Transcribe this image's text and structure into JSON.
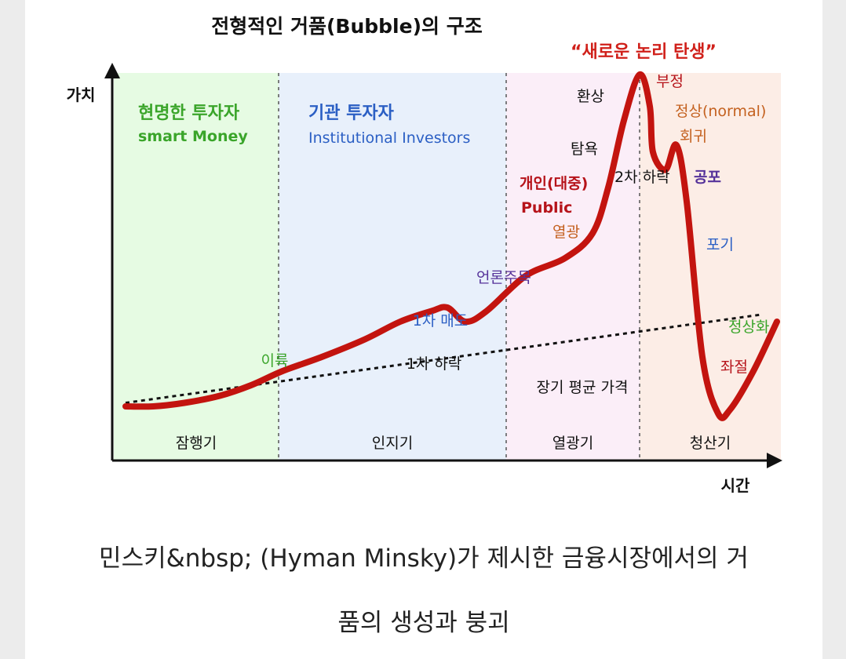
{
  "chart_data": {
    "type": "line",
    "title": "전형적인 거품(Bubble)의 구조",
    "xlabel": "시간",
    "ylabel": "가치",
    "phases": [
      {
        "name": "잠행기",
        "color": "#e6fbe3"
      },
      {
        "name": "인지기",
        "color": "#e8f0fb"
      },
      {
        "name": "열광기",
        "color": "#fbeef8"
      },
      {
        "name": "청산기",
        "color": "#fcede6"
      }
    ],
    "series": [
      {
        "name": "",
        "values": [
          0.06,
          0.06,
          0.07,
          0.09,
          0.12,
          0.16,
          0.2,
          0.25,
          0.3,
          0.33,
          0.34,
          0.3,
          0.33,
          0.43,
          0.48,
          0.55,
          0.68,
          0.87,
          1.0,
          0.91,
          0.78,
          0.73,
          0.8,
          0.64,
          0.2,
          0.04,
          0.05,
          0.16,
          0.3
        ]
      },
      {
        "name": "장기 평균 가격",
        "values": [
          0.07,
          0.32
        ]
      }
    ],
    "annotations": {
      "smart_money_kr": "현명한 투자자",
      "smart_money_en": "smart Money",
      "institutional_kr": "기관 투자자",
      "institutional_en": "Institutional Investors",
      "profit": "이륙",
      "first_sell": "1차 매도",
      "first_drop": "1차 하락",
      "media": "언론주목",
      "public_kr": "개인(대중)",
      "public_en": "Public",
      "mania": "열광",
      "greed": "탐욕",
      "delusion": "환상",
      "new_paradigm": "“새로운 논리 탄생”",
      "denial": "부정",
      "return_to_normal_1": "정상(normal)",
      "return_to_normal_2": "회귀",
      "second_drop": "2차 하락",
      "fear": "공포",
      "capitulation": "포기",
      "despair": "좌절",
      "normalization": "정상화",
      "long_term_avg": "장기 평균 가격"
    },
    "colors": {
      "curve": "#c3140f",
      "green_text": "#3aa52a",
      "blue_text": "#2b5fc4",
      "purple_text": "#55329a",
      "orange_text": "#c4611f",
      "red_text": "#b6131a"
    }
  },
  "caption": {
    "line1": "민스키&nbsp; (Hyman Minsky)가 제시한 금융시장에서의 거",
    "line2": "품의 생성과 붕괴"
  }
}
